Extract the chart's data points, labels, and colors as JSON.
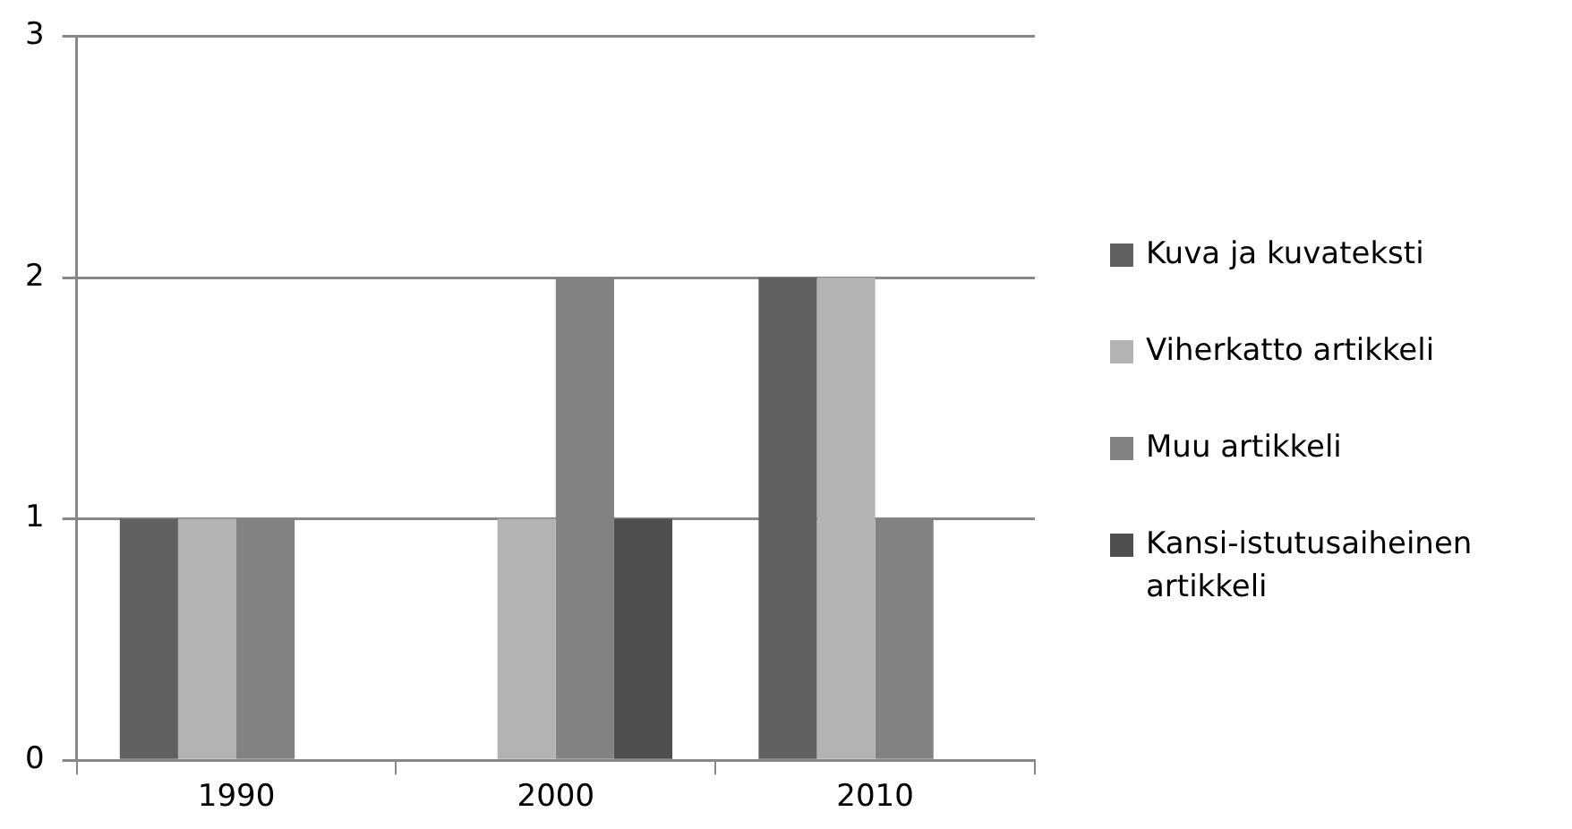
{
  "chart_data": {
    "type": "bar",
    "categories": [
      "1990",
      "2000",
      "2010"
    ],
    "series": [
      {
        "name": "Kuva ja kuvateksti",
        "color": "#616161",
        "values": [
          1,
          0,
          2
        ]
      },
      {
        "name": "Viherkatto artikkeli",
        "color": "#b3b3b3",
        "values": [
          1,
          1,
          2
        ]
      },
      {
        "name": "Muu artikkeli",
        "color": "#828282",
        "values": [
          1,
          2,
          1
        ]
      },
      {
        "name": "Kansi-istutusaiheinen artikkeli",
        "color": "#4f4f4f",
        "values": [
          0,
          1,
          0
        ]
      }
    ],
    "ylim": [
      0,
      3
    ],
    "yticks": [
      0,
      1,
      2,
      3
    ],
    "grid": "y",
    "legend": "right"
  }
}
